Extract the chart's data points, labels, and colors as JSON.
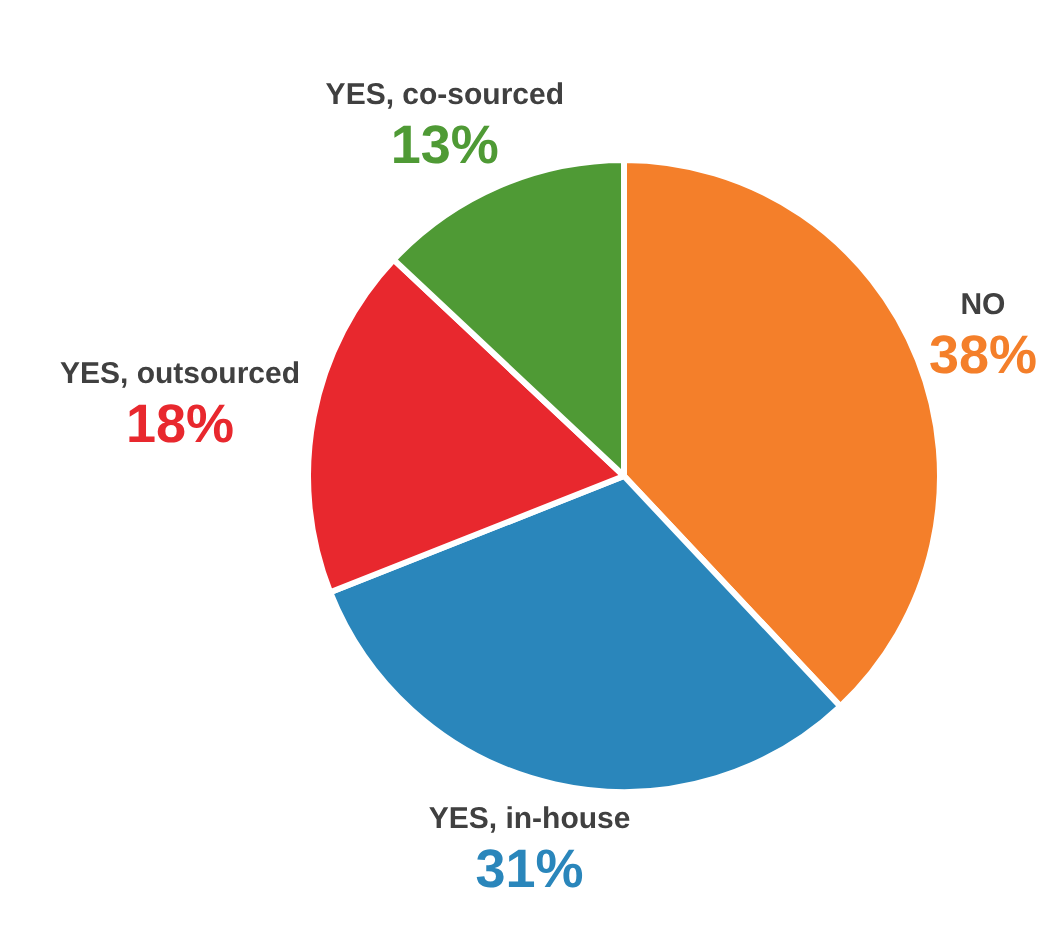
{
  "chart_data": {
    "type": "pie",
    "categories": [
      "NO",
      "YES, in-house",
      "YES, outsourced",
      "YES, co-sourced"
    ],
    "values": [
      38,
      31,
      18,
      13
    ],
    "colors": [
      "#f47f2a",
      "#2a86bb",
      "#e8282e",
      "#4f9a35"
    ],
    "value_labels": [
      "38%",
      "31%",
      "18%",
      "13%"
    ]
  }
}
